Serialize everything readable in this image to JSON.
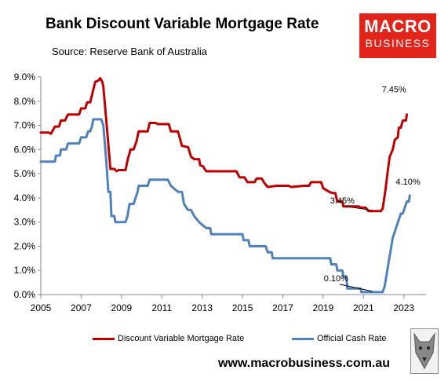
{
  "header": {
    "title": "Bank Discount Variable Mortgage Rate",
    "subtitle": "Source: Reserve Bank of Australia"
  },
  "logo": {
    "line1": "MACRO",
    "line2": "BUSINESS"
  },
  "footer": {
    "url": "www.macrobusiness.com.au"
  },
  "colors": {
    "mortgage": "#c00000",
    "cash": "#4f81bd",
    "brand": "#e1251b"
  },
  "chart_data": {
    "type": "line",
    "title": "Bank Discount Variable Mortgage Rate",
    "subtitle": "Source: Reserve Bank of Australia",
    "xlim": [
      2005,
      2024.1
    ],
    "ylim": [
      0,
      9
    ],
    "xticks": [
      2005,
      2007,
      2009,
      2011,
      2013,
      2015,
      2017,
      2019,
      2021,
      2023
    ],
    "xtick_labels": [
      "2005",
      "2007",
      "2009",
      "2011",
      "2013",
      "2015",
      "2017",
      "2019",
      "2021",
      "2023"
    ],
    "yticks": [
      0,
      1,
      2,
      3,
      4,
      5,
      6,
      7,
      8,
      9
    ],
    "ytick_labels": [
      "0.0%",
      "1.0%",
      "2.0%",
      "3.0%",
      "4.0%",
      "5.0%",
      "6.0%",
      "7.0%",
      "8.0%",
      "9.0%"
    ],
    "grid": false,
    "legend": "bottom",
    "series": [
      {
        "name": "Discount Variable Mortgage Rate",
        "color": "#c00000",
        "points": [
          [
            2005.0,
            6.7
          ],
          [
            2005.4,
            6.7
          ],
          [
            2005.5,
            6.65
          ],
          [
            2005.7,
            6.95
          ],
          [
            2005.9,
            6.95
          ],
          [
            2006.0,
            7.2
          ],
          [
            2006.2,
            7.2
          ],
          [
            2006.35,
            7.45
          ],
          [
            2006.9,
            7.45
          ],
          [
            2007.0,
            7.7
          ],
          [
            2007.2,
            7.7
          ],
          [
            2007.3,
            7.95
          ],
          [
            2007.45,
            7.95
          ],
          [
            2007.55,
            8.3
          ],
          [
            2007.7,
            8.8
          ],
          [
            2007.85,
            8.85
          ],
          [
            2007.95,
            8.95
          ],
          [
            2008.05,
            8.8
          ],
          [
            2008.1,
            8.6
          ],
          [
            2008.25,
            7.2
          ],
          [
            2008.35,
            6.2
          ],
          [
            2008.45,
            5.2
          ],
          [
            2008.65,
            5.2
          ],
          [
            2008.75,
            5.1
          ],
          [
            2008.85,
            5.15
          ],
          [
            2009.2,
            5.15
          ],
          [
            2009.3,
            5.55
          ],
          [
            2009.45,
            6.0
          ],
          [
            2009.6,
            6.0
          ],
          [
            2009.75,
            6.35
          ],
          [
            2009.85,
            6.75
          ],
          [
            2010.3,
            6.75
          ],
          [
            2010.4,
            7.1
          ],
          [
            2010.7,
            7.1
          ],
          [
            2010.8,
            7.05
          ],
          [
            2011.35,
            7.05
          ],
          [
            2011.45,
            6.75
          ],
          [
            2011.8,
            6.75
          ],
          [
            2011.9,
            6.45
          ],
          [
            2012.0,
            6.15
          ],
          [
            2012.3,
            6.1
          ],
          [
            2012.45,
            5.7
          ],
          [
            2012.6,
            5.6
          ],
          [
            2012.85,
            5.6
          ],
          [
            2012.9,
            5.35
          ],
          [
            2013.05,
            5.3
          ],
          [
            2013.2,
            5.1
          ],
          [
            2014.5,
            5.1
          ],
          [
            2014.7,
            5.1
          ],
          [
            2014.85,
            4.85
          ],
          [
            2015.1,
            4.85
          ],
          [
            2015.25,
            4.65
          ],
          [
            2015.6,
            4.65
          ],
          [
            2015.7,
            4.8
          ],
          [
            2015.95,
            4.8
          ],
          [
            2016.1,
            4.6
          ],
          [
            2016.25,
            4.45
          ],
          [
            2016.7,
            4.5
          ],
          [
            2017.3,
            4.5
          ],
          [
            2017.4,
            4.45
          ],
          [
            2018.05,
            4.5
          ],
          [
            2018.3,
            4.5
          ],
          [
            2018.4,
            4.65
          ],
          [
            2018.9,
            4.65
          ],
          [
            2019.0,
            4.4
          ],
          [
            2019.3,
            4.25
          ],
          [
            2019.45,
            4.2
          ],
          [
            2019.6,
            4.2
          ],
          [
            2019.7,
            3.85
          ],
          [
            2019.95,
            3.85
          ],
          [
            2020.0,
            3.65
          ],
          [
            2020.75,
            3.65
          ],
          [
            2020.85,
            3.6
          ],
          [
            2021.1,
            3.6
          ],
          [
            2021.25,
            3.45
          ],
          [
            2021.85,
            3.45
          ],
          [
            2021.95,
            3.55
          ],
          [
            2022.1,
            4.4
          ],
          [
            2022.2,
            5.1
          ],
          [
            2022.3,
            5.7
          ],
          [
            2022.45,
            6.0
          ],
          [
            2022.55,
            6.4
          ],
          [
            2022.7,
            6.5
          ],
          [
            2022.75,
            6.9
          ],
          [
            2022.85,
            6.9
          ],
          [
            2022.95,
            7.2
          ],
          [
            2023.1,
            7.2
          ],
          [
            2023.15,
            7.45
          ]
        ],
        "end_label": "7.45%",
        "mid_label": "3.45%"
      },
      {
        "name": "Official Cash Rate",
        "color": "#4f81bd",
        "points": [
          [
            2005.0,
            5.5
          ],
          [
            2005.7,
            5.5
          ],
          [
            2005.75,
            5.75
          ],
          [
            2005.95,
            5.75
          ],
          [
            2006.0,
            6.0
          ],
          [
            2006.25,
            6.0
          ],
          [
            2006.35,
            6.25
          ],
          [
            2006.9,
            6.25
          ],
          [
            2007.0,
            6.5
          ],
          [
            2007.25,
            6.5
          ],
          [
            2007.35,
            6.75
          ],
          [
            2007.45,
            6.75
          ],
          [
            2007.55,
            7.0
          ],
          [
            2007.6,
            7.25
          ],
          [
            2008.0,
            7.25
          ],
          [
            2008.1,
            7.0
          ],
          [
            2008.15,
            6.5
          ],
          [
            2008.25,
            5.5
          ],
          [
            2008.35,
            4.25
          ],
          [
            2008.45,
            4.25
          ],
          [
            2008.5,
            3.25
          ],
          [
            2008.65,
            3.25
          ],
          [
            2008.7,
            3.0
          ],
          [
            2009.2,
            3.0
          ],
          [
            2009.3,
            3.25
          ],
          [
            2009.4,
            3.75
          ],
          [
            2009.6,
            3.75
          ],
          [
            2009.7,
            4.0
          ],
          [
            2009.8,
            4.25
          ],
          [
            2009.85,
            4.5
          ],
          [
            2010.3,
            4.5
          ],
          [
            2010.4,
            4.75
          ],
          [
            2011.3,
            4.75
          ],
          [
            2011.45,
            4.5
          ],
          [
            2011.8,
            4.25
          ],
          [
            2012.0,
            4.25
          ],
          [
            2012.1,
            3.75
          ],
          [
            2012.3,
            3.5
          ],
          [
            2012.45,
            3.5
          ],
          [
            2012.6,
            3.25
          ],
          [
            2012.85,
            3.0
          ],
          [
            2013.2,
            2.75
          ],
          [
            2013.4,
            2.75
          ],
          [
            2013.45,
            2.5
          ],
          [
            2014.9,
            2.5
          ],
          [
            2015.0,
            2.5
          ],
          [
            2015.05,
            2.25
          ],
          [
            2015.3,
            2.25
          ],
          [
            2015.35,
            2.0
          ],
          [
            2016.15,
            2.0
          ],
          [
            2016.25,
            1.75
          ],
          [
            2016.45,
            1.75
          ],
          [
            2016.5,
            1.5
          ],
          [
            2019.35,
            1.5
          ],
          [
            2019.4,
            1.25
          ],
          [
            2019.65,
            1.25
          ],
          [
            2019.7,
            1.0
          ],
          [
            2019.95,
            1.0
          ],
          [
            2020.0,
            0.75
          ],
          [
            2020.15,
            0.75
          ],
          [
            2020.2,
            0.25
          ],
          [
            2020.85,
            0.25
          ],
          [
            2020.9,
            0.1
          ],
          [
            2021.8,
            0.1
          ],
          [
            2021.95,
            0.1
          ],
          [
            2022.05,
            0.35
          ],
          [
            2022.15,
            0.85
          ],
          [
            2022.25,
            1.35
          ],
          [
            2022.35,
            1.85
          ],
          [
            2022.45,
            2.35
          ],
          [
            2022.55,
            2.6
          ],
          [
            2022.65,
            2.85
          ],
          [
            2022.75,
            3.1
          ],
          [
            2022.85,
            3.35
          ],
          [
            2022.95,
            3.35
          ],
          [
            2023.05,
            3.6
          ],
          [
            2023.15,
            3.85
          ],
          [
            2023.25,
            3.85
          ],
          [
            2023.3,
            4.1
          ]
        ],
        "end_label": "4.10%",
        "mid_label": "0.10%"
      }
    ],
    "annotations": [
      {
        "text": "7.45%",
        "series": 0,
        "at": [
          2023.15,
          7.45
        ]
      },
      {
        "text": "4.10%",
        "series": 1,
        "at": [
          2023.3,
          4.1
        ]
      },
      {
        "text": "3.45%",
        "series": 0,
        "at": [
          2021.6,
          3.45
        ]
      },
      {
        "text": "0.10%",
        "series": 1,
        "at": [
          2021.6,
          0.1
        ]
      }
    ]
  },
  "legend": {
    "mortgage_label": "Discount Variable Mortgage Rate",
    "cash_label": "Official Cash Rate"
  }
}
